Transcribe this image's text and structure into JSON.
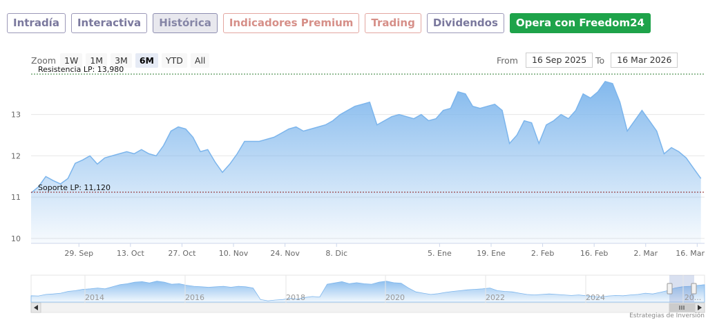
{
  "tabs": [
    {
      "label": "Intradía",
      "style": "normal"
    },
    {
      "label": "Interactiva",
      "style": "normal"
    },
    {
      "label": "Histórica",
      "style": "active"
    },
    {
      "label": "Indicadores Premium",
      "style": "premium"
    },
    {
      "label": "Trading",
      "style": "trading"
    },
    {
      "label": "Dividendos",
      "style": "normal"
    },
    {
      "label": "Opera con Freedom24",
      "style": "opera"
    }
  ],
  "zoom": {
    "label": "Zoom",
    "buttons": [
      "1W",
      "1M",
      "3M",
      "6M",
      "YTD",
      "All"
    ],
    "selected": "6M"
  },
  "range": {
    "from_label": "From",
    "from_value": "16 Sep 2025",
    "to_label": "To",
    "to_value": "16 Mar 2026"
  },
  "credit": "Estrategias de Inversión",
  "colors": {
    "line": "#7cb5ec",
    "fill_top": "#7cb5ec",
    "accent_resistance": "#2e7d32",
    "accent_support": "#8b1a1a"
  },
  "chart_data": {
    "type": "area",
    "x_start": "2025-09-16",
    "x_end": "2026-03-18",
    "ylim": [
      9.88,
      14.1
    ],
    "y_ticks": [
      10,
      11,
      12,
      13
    ],
    "x_ticks": [
      {
        "date": "2025-09-29",
        "label": "29. Sep"
      },
      {
        "date": "2025-10-13",
        "label": "13. Oct"
      },
      {
        "date": "2025-10-27",
        "label": "27. Oct"
      },
      {
        "date": "2025-11-10",
        "label": "10. Nov"
      },
      {
        "date": "2025-11-24",
        "label": "24. Nov"
      },
      {
        "date": "2025-12-08",
        "label": "8. Dic"
      },
      {
        "date": "2026-01-05",
        "label": "5. Ene"
      },
      {
        "date": "2026-01-19",
        "label": "19. Ene"
      },
      {
        "date": "2026-02-02",
        "label": "2. Feb"
      },
      {
        "date": "2026-02-16",
        "label": "16. Feb"
      },
      {
        "date": "2026-03-02",
        "label": "2. Mar"
      },
      {
        "date": "2026-03-16",
        "label": "16. Mar"
      }
    ],
    "grid": true,
    "plot_lines": [
      {
        "label": "Resistencia LP: 13,980",
        "value": 13.98
      },
      {
        "label": "Soporte LP: 11,120",
        "value": 11.12
      }
    ],
    "series": [
      {
        "x": [
          "2025-09-16",
          "2025-09-18",
          "2025-09-20",
          "2025-09-22",
          "2025-09-24",
          "2025-09-26",
          "2025-09-28",
          "2025-09-30",
          "2025-10-02",
          "2025-10-04",
          "2025-10-06",
          "2025-10-08",
          "2025-10-10",
          "2025-10-12",
          "2025-10-14",
          "2025-10-16",
          "2025-10-18",
          "2025-10-20",
          "2025-10-22",
          "2025-10-24",
          "2025-10-26",
          "2025-10-28",
          "2025-10-30",
          "2025-11-01",
          "2025-11-03",
          "2025-11-05",
          "2025-11-07",
          "2025-11-09",
          "2025-11-11",
          "2025-11-13",
          "2025-11-15",
          "2025-11-17",
          "2025-11-19",
          "2025-11-21",
          "2025-11-23",
          "2025-11-25",
          "2025-11-27",
          "2025-11-29",
          "2025-12-01",
          "2025-12-03",
          "2025-12-05",
          "2025-12-07",
          "2025-12-09",
          "2025-12-11",
          "2025-12-13",
          "2025-12-15",
          "2025-12-17",
          "2025-12-19",
          "2025-12-21",
          "2025-12-23",
          "2025-12-25",
          "2025-12-27",
          "2025-12-29",
          "2025-12-31",
          "2026-01-02",
          "2026-01-04",
          "2026-01-06",
          "2026-01-08",
          "2026-01-10",
          "2026-01-12",
          "2026-01-14",
          "2026-01-16",
          "2026-01-18",
          "2026-01-20",
          "2026-01-22",
          "2026-01-24",
          "2026-01-26",
          "2026-01-28",
          "2026-01-30",
          "2026-02-01",
          "2026-02-03",
          "2026-02-05",
          "2026-02-07",
          "2026-02-09",
          "2026-02-11",
          "2026-02-13",
          "2026-02-15",
          "2026-02-17",
          "2026-02-19",
          "2026-02-21",
          "2026-02-23",
          "2026-02-25",
          "2026-02-27",
          "2026-03-01",
          "2026-03-03",
          "2026-03-05",
          "2026-03-07",
          "2026-03-09",
          "2026-03-11",
          "2026-03-13",
          "2026-03-15",
          "2026-03-17"
        ],
        "values": [
          11.1,
          11.25,
          11.5,
          11.4,
          11.32,
          11.45,
          11.82,
          11.9,
          12.0,
          11.8,
          11.95,
          12.0,
          12.05,
          12.1,
          12.05,
          12.15,
          12.05,
          12.0,
          12.25,
          12.6,
          12.7,
          12.65,
          12.45,
          12.1,
          12.15,
          11.85,
          11.6,
          11.8,
          12.05,
          12.35,
          12.35,
          12.35,
          12.4,
          12.45,
          12.55,
          12.65,
          12.7,
          12.6,
          12.65,
          12.7,
          12.75,
          12.85,
          13.0,
          13.1,
          13.2,
          13.25,
          13.3,
          12.75,
          12.85,
          12.95,
          13.0,
          12.95,
          12.9,
          13.0,
          12.85,
          12.9,
          13.1,
          13.15,
          13.55,
          13.5,
          13.2,
          13.15,
          13.2,
          13.25,
          13.1,
          12.3,
          12.5,
          12.85,
          12.8,
          12.3,
          12.75,
          12.85,
          13.0,
          12.9,
          13.1,
          13.5,
          13.4,
          13.55,
          13.8,
          13.75,
          13.3,
          12.6,
          12.85,
          13.1,
          12.85,
          12.6,
          12.05,
          12.2,
          12.1,
          11.95,
          11.7,
          11.45
        ]
      }
    ],
    "navigator": {
      "x_ticks": [
        "2014",
        "2016",
        "2018",
        "2020",
        "2022",
        "2024",
        "20..."
      ]
    }
  }
}
